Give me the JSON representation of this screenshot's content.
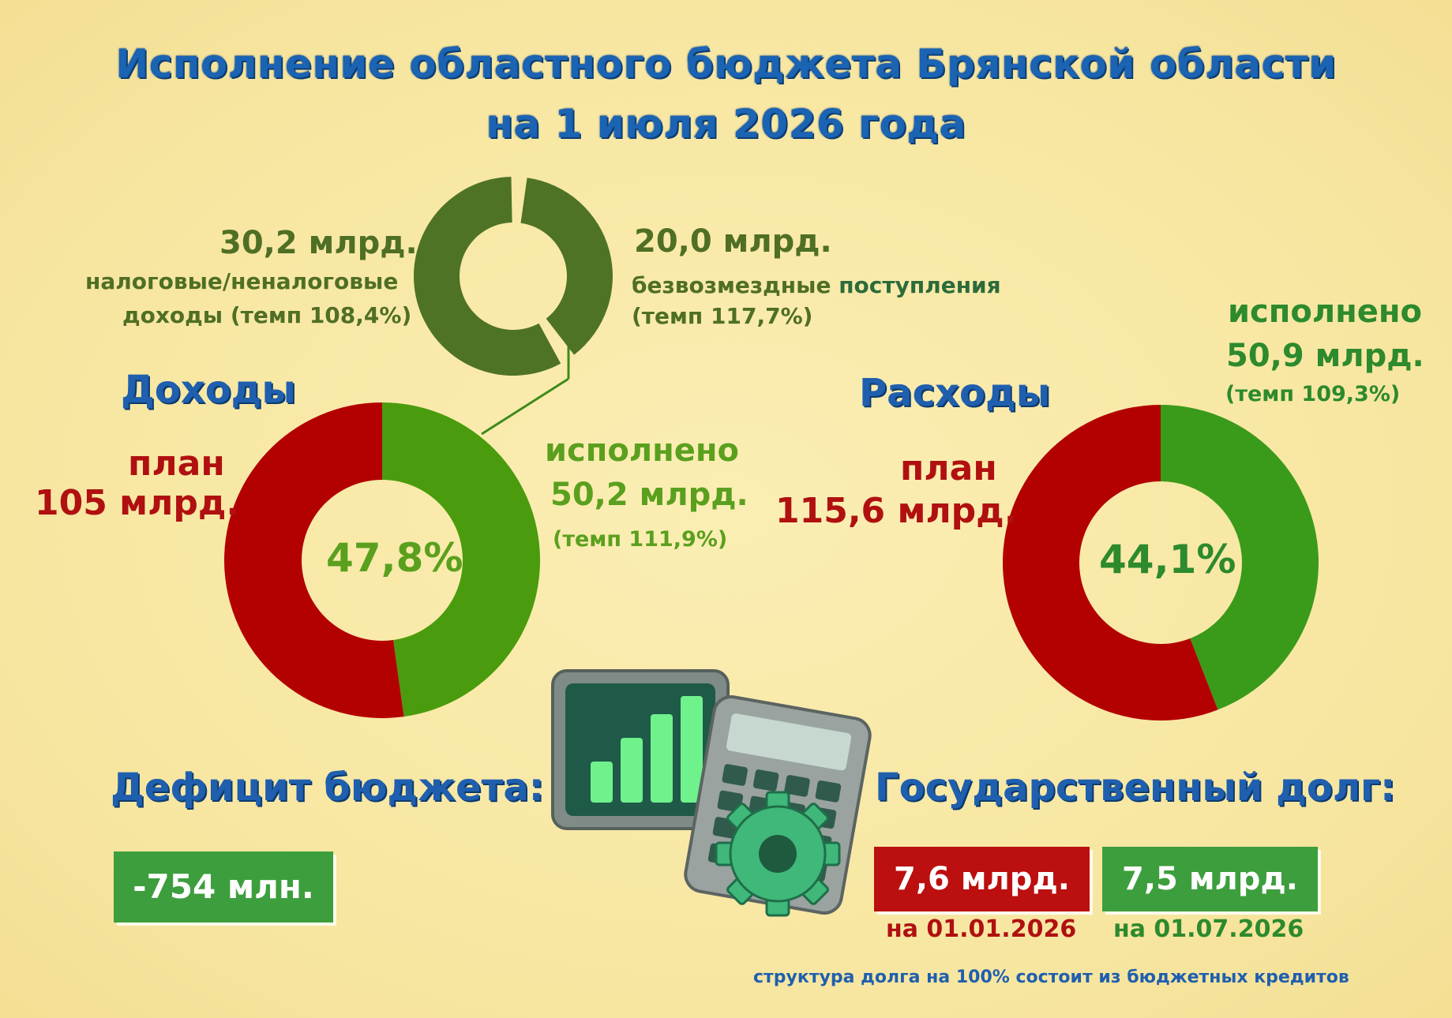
{
  "title": {
    "line1": "Исполнение областного бюджета Брянской области",
    "line2": "на 1 июля 2026 года"
  },
  "income_structure": {
    "tax": {
      "amount": "30,2 млрд.",
      "label1": "налоговые/неналоговые",
      "label2": "доходы (темп 108,4%)"
    },
    "grants": {
      "amount": "20,0 млрд.",
      "label1a": "безвозмездные ",
      "label1b": "поступления",
      "label2": "(темп 117,7%)"
    }
  },
  "income": {
    "heading": "Доходы",
    "plan_label": "план",
    "plan_value": "105 млрд.",
    "done_label": "исполнено",
    "done_value": "50,2 млрд.",
    "done_rate": "(темп 111,9%)",
    "center_pct": "47,8%"
  },
  "expenses": {
    "heading": "Расходы",
    "plan_label": "план",
    "plan_value": "115,6 млрд.",
    "done_label": "исполнено",
    "done_value": "50,9 млрд.",
    "done_rate": "(темп 109,3%)",
    "center_pct": "44,1%"
  },
  "deficit": {
    "heading": "Дефицит бюджета:",
    "value": "-754 млн."
  },
  "debt": {
    "heading": "Государственный долг:",
    "start_value": "7,6 млрд.",
    "start_date": "на 01.01.2026",
    "end_value": "7,5 млрд.",
    "end_date": "на 01.07.2026",
    "note": "структура долга на 100% состоит из бюджетных кредитов"
  },
  "colors": {
    "plan_red": "#b30000",
    "done_green": "#4a9c0e",
    "expense_green": "#3a9a1a",
    "olive_ring": "#4e7325",
    "title_blue": "#1b63b3"
  },
  "chart_data": [
    {
      "type": "pie",
      "title": "Доходы",
      "categories": [
        "план",
        "исполнено"
      ],
      "values": [
        52.2,
        47.8
      ]
    },
    {
      "type": "pie",
      "title": "Расходы",
      "categories": [
        "план",
        "исполнено"
      ],
      "values": [
        55.9,
        44.1
      ]
    },
    {
      "type": "pie",
      "categories": [
        "налоговые/неналоговые доходы",
        "безвозмездные поступления"
      ],
      "values": [
        30.2,
        20.0
      ]
    }
  ]
}
